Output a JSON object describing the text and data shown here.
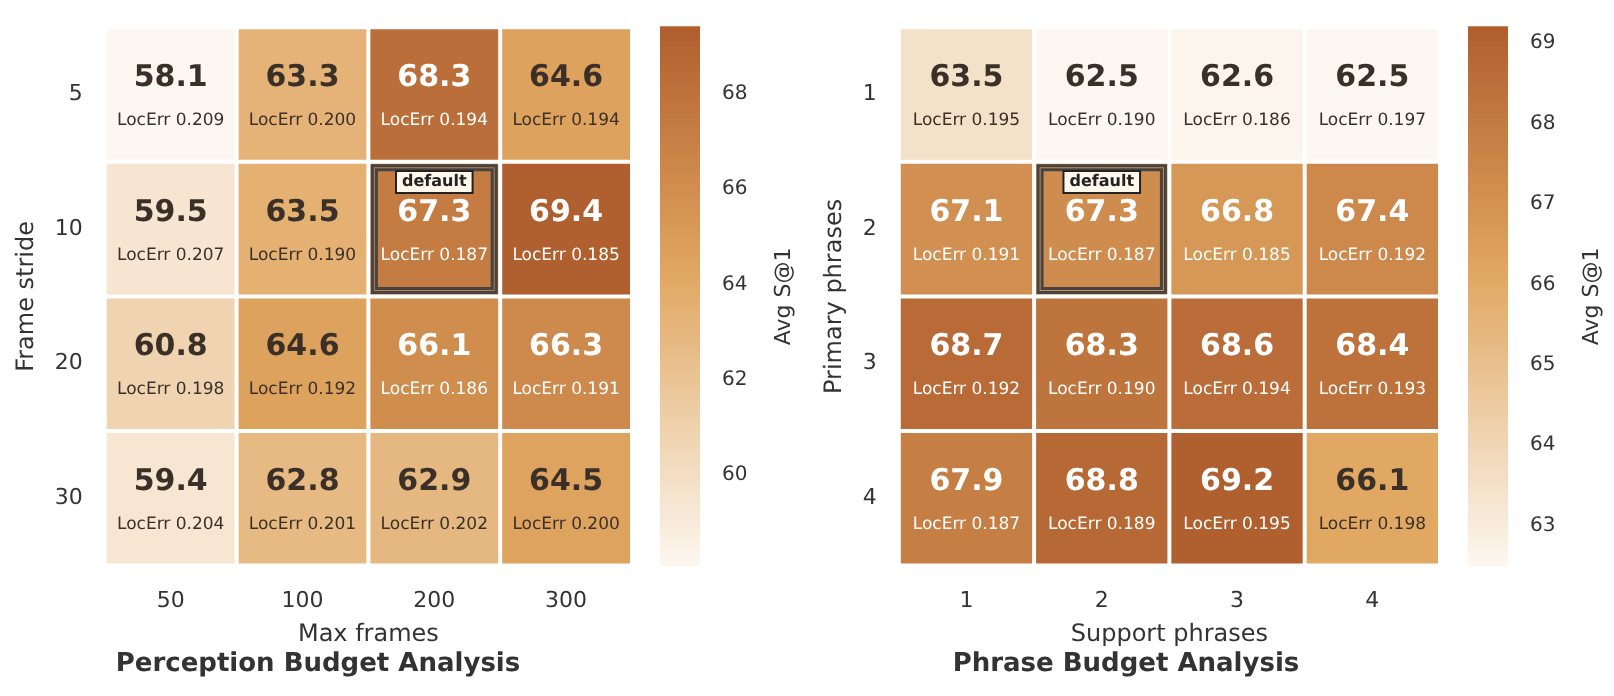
{
  "chart_data": [
    {
      "type": "heatmap",
      "title": "Perception Budget Analysis",
      "xlabel": "Max frames",
      "ylabel": "Frame stride",
      "clabel": "Avg S@1",
      "categories": [
        "50",
        "100",
        "200",
        "300"
      ],
      "y_categories": [
        "5",
        "10",
        "20",
        "30"
      ],
      "cells": [
        [
          58.1,
          63.3,
          68.3,
          64.6
        ],
        [
          59.5,
          63.5,
          67.3,
          69.4
        ],
        [
          60.8,
          64.6,
          66.1,
          66.3
        ],
        [
          59.4,
          62.8,
          62.9,
          64.5
        ]
      ],
      "cell_labels": [
        [
          "58.1\nLocErr 0.209",
          "63.3\nLocErr 0.200",
          "68.3\nLocErr 0.194",
          "64.6\nLocErr 0.194"
        ],
        [
          "59.5\nLocErr 0.207",
          "63.5\nLocErr 0.190",
          "default\n67.3\nLocErr 0.187",
          "69.4\nLocErr 0.185"
        ],
        [
          "60.8\nLocErr 0.198",
          "64.6\nLocErr 0.192",
          "66.1\nLocErr 0.186",
          "66.3\nLocErr 0.191"
        ],
        [
          "59.4\nLocErr 0.204",
          "62.8\nLocErr 0.201",
          "62.9\nLocErr 0.202",
          "64.5\nLocErr 0.200"
        ]
      ],
      "clim": [
        58.1,
        69.4
      ],
      "cticks": [
        60,
        62,
        64,
        66,
        68
      ]
    },
    {
      "type": "heatmap",
      "title": "Phrase Budget Analysis",
      "xlabel": "Support phrases",
      "ylabel": "Primary phrases",
      "clabel": "Avg S@1",
      "categories": [
        "1",
        "2",
        "3",
        "4"
      ],
      "y_categories": [
        "1",
        "2",
        "3",
        "4"
      ],
      "cells": [
        [
          63.5,
          62.5,
          62.6,
          62.5
        ],
        [
          67.1,
          67.3,
          66.8,
          67.4
        ],
        [
          68.7,
          68.3,
          68.6,
          68.4
        ],
        [
          67.9,
          68.8,
          69.2,
          66.1
        ]
      ],
      "cell_labels": [
        [
          "63.5\nLocErr 0.195",
          "62.5\nLocErr 0.190",
          "62.6\nLocErr 0.186",
          "62.5\nLocErr 0.197"
        ],
        [
          "67.1\nLocErr 0.191",
          "default\n67.3\nLocErr 0.187",
          "66.8\nLocErr 0.185",
          "67.4\nLocErr 0.192"
        ],
        [
          "68.7\nLocErr 0.192",
          "68.3\nLocErr 0.190",
          "68.6\nLocErr 0.194",
          "68.4\nLocErr 0.193"
        ],
        [
          "67.9\nLocErr 0.187",
          "68.8\nLocErr 0.189",
          "69.2\nLocErr 0.195",
          "66.1\nLocErr 0.198"
        ]
      ],
      "clim": [
        62.5,
        69.2
      ],
      "cticks": [
        63,
        64,
        65,
        66,
        67,
        68,
        69
      ]
    }
  ]
}
